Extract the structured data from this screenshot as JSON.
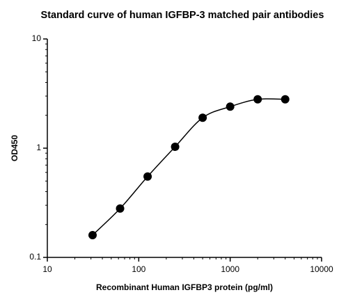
{
  "chart_data": {
    "type": "scatter",
    "title": "Standard curve of human IGFBP-3 matched pair antibodies",
    "x_label": "Recombinant Human IGFBP3 protein (pg/ml)",
    "y_label": "OD450",
    "x": [
      31.25,
      62.5,
      125,
      250,
      500,
      1000,
      2000,
      4000
    ],
    "series": [
      {
        "color": "#000000",
        "values": [
          0.16,
          0.28,
          0.55,
          1.03,
          1.9,
          2.4,
          2.8,
          2.8
        ]
      }
    ],
    "x_log": true,
    "y_log": true,
    "xlim": [
      10,
      10000
    ],
    "xticks": [
      10,
      100,
      1000,
      10000
    ],
    "ylim": [
      0.1,
      10
    ],
    "yticks": [
      0.1,
      1,
      10
    ],
    "fit_line": true
  }
}
